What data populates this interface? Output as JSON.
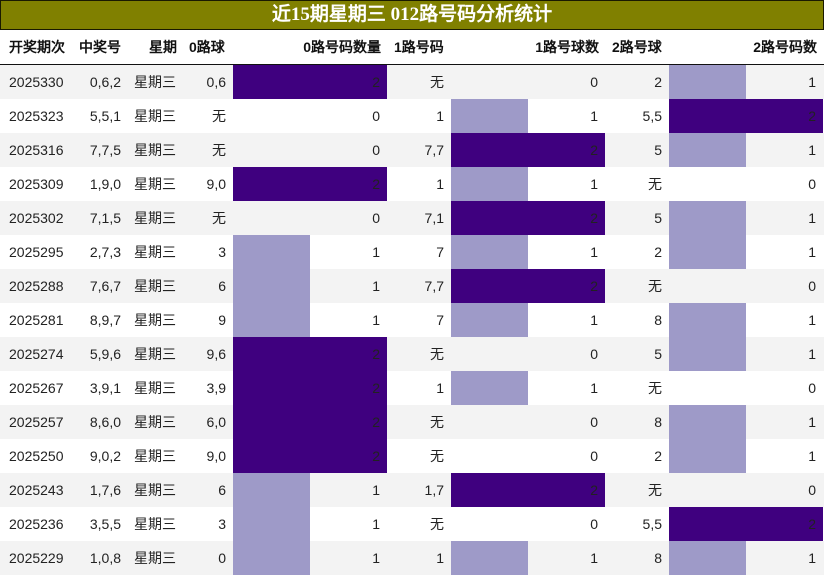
{
  "title": "近15期星期三 012路号码分析统计",
  "colors": {
    "title_bg": "#808000",
    "bar_full": "#3f007f",
    "bar_half": "#9e9ac8",
    "row_alt": "#f3f3f3"
  },
  "headers": {
    "period": "开奖期次",
    "winning_number": "中奖号",
    "weekday": "星期",
    "road0_balls": "0路球",
    "road0_count": "0路号码数量",
    "road1_balls": "1路号码",
    "road1_count": "1路号球数",
    "road2_balls": "2路号球",
    "road2_count": "2路号码数"
  },
  "rows": [
    {
      "period": "2025330",
      "number": "0,6,2",
      "weekday": "星期三",
      "r0": "0,6",
      "r0n": "2",
      "r1": "无",
      "r1n": "0",
      "r2": "2",
      "r2n": "1"
    },
    {
      "period": "2025323",
      "number": "5,5,1",
      "weekday": "星期三",
      "r0": "无",
      "r0n": "0",
      "r1": "1",
      "r1n": "1",
      "r2": "5,5",
      "r2n": "2"
    },
    {
      "period": "2025316",
      "number": "7,7,5",
      "weekday": "星期三",
      "r0": "无",
      "r0n": "0",
      "r1": "7,7",
      "r1n": "2",
      "r2": "5",
      "r2n": "1"
    },
    {
      "period": "2025309",
      "number": "1,9,0",
      "weekday": "星期三",
      "r0": "9,0",
      "r0n": "2",
      "r1": "1",
      "r1n": "1",
      "r2": "无",
      "r2n": "0"
    },
    {
      "period": "2025302",
      "number": "7,1,5",
      "weekday": "星期三",
      "r0": "无",
      "r0n": "0",
      "r1": "7,1",
      "r1n": "2",
      "r2": "5",
      "r2n": "1"
    },
    {
      "period": "2025295",
      "number": "2,7,3",
      "weekday": "星期三",
      "r0": "3",
      "r0n": "1",
      "r1": "7",
      "r1n": "1",
      "r2": "2",
      "r2n": "1"
    },
    {
      "period": "2025288",
      "number": "7,6,7",
      "weekday": "星期三",
      "r0": "6",
      "r0n": "1",
      "r1": "7,7",
      "r1n": "2",
      "r2": "无",
      "r2n": "0"
    },
    {
      "period": "2025281",
      "number": "8,9,7",
      "weekday": "星期三",
      "r0": "9",
      "r0n": "1",
      "r1": "7",
      "r1n": "1",
      "r2": "8",
      "r2n": "1"
    },
    {
      "period": "2025274",
      "number": "5,9,6",
      "weekday": "星期三",
      "r0": "9,6",
      "r0n": "2",
      "r1": "无",
      "r1n": "0",
      "r2": "5",
      "r2n": "1"
    },
    {
      "period": "2025267",
      "number": "3,9,1",
      "weekday": "星期三",
      "r0": "3,9",
      "r0n": "2",
      "r1": "1",
      "r1n": "1",
      "r2": "无",
      "r2n": "0"
    },
    {
      "period": "2025257",
      "number": "8,6,0",
      "weekday": "星期三",
      "r0": "6,0",
      "r0n": "2",
      "r1": "无",
      "r1n": "0",
      "r2": "8",
      "r2n": "1"
    },
    {
      "period": "2025250",
      "number": "9,0,2",
      "weekday": "星期三",
      "r0": "9,0",
      "r0n": "2",
      "r1": "无",
      "r1n": "0",
      "r2": "2",
      "r2n": "1"
    },
    {
      "period": "2025243",
      "number": "1,7,6",
      "weekday": "星期三",
      "r0": "6",
      "r0n": "1",
      "r1": "1,7",
      "r1n": "2",
      "r2": "无",
      "r2n": "0"
    },
    {
      "period": "2025236",
      "number": "3,5,5",
      "weekday": "星期三",
      "r0": "3",
      "r0n": "1",
      "r1": "无",
      "r1n": "0",
      "r2": "5,5",
      "r2n": "2"
    },
    {
      "period": "2025229",
      "number": "1,0,8",
      "weekday": "星期三",
      "r0": "0",
      "r0n": "1",
      "r1": "1",
      "r1n": "1",
      "r2": "8",
      "r2n": "1"
    }
  ]
}
